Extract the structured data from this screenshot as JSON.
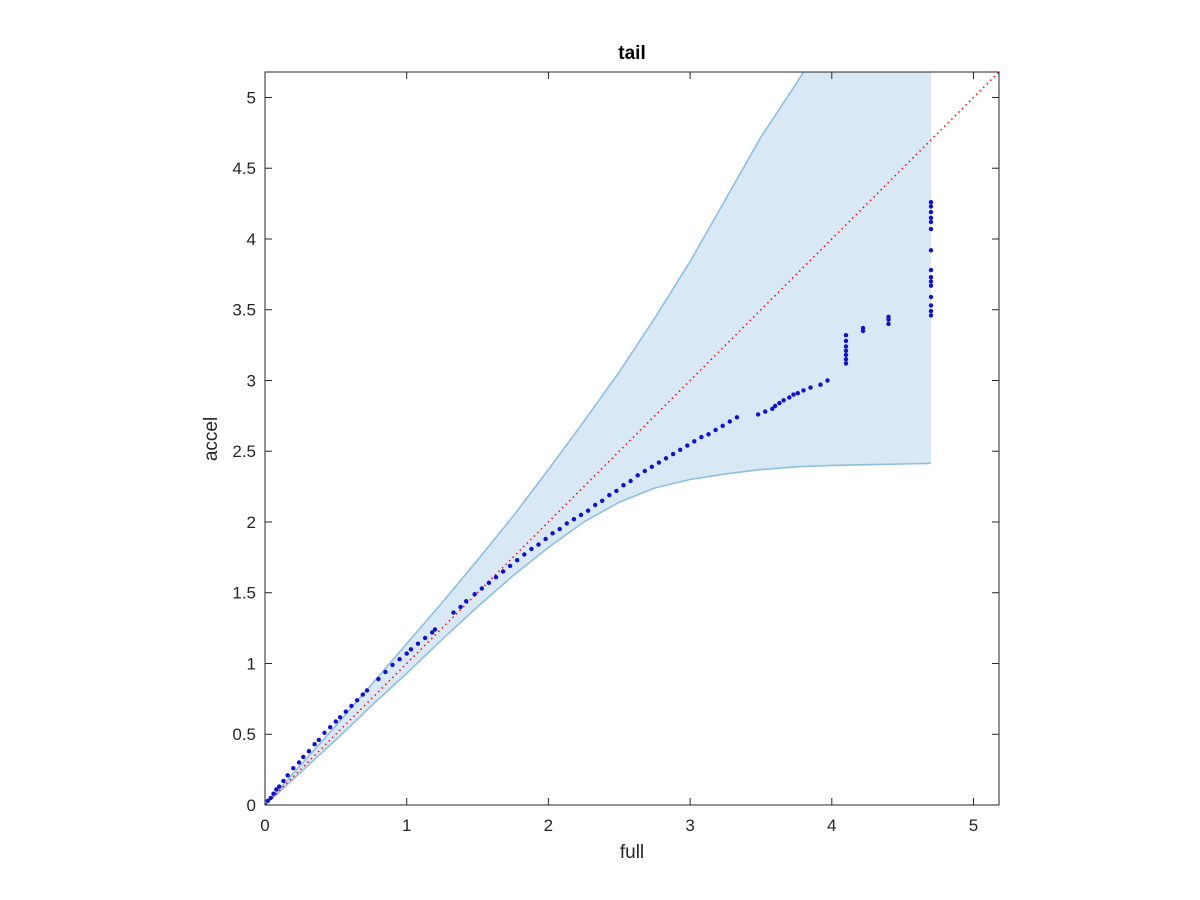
{
  "chart_data": {
    "type": "scatter",
    "title": "tail",
    "xlabel": "full",
    "ylabel": "accel",
    "xlim": [
      0,
      5.18
    ],
    "ylim": [
      0,
      5.18
    ],
    "xticks": [
      0,
      1,
      2,
      3,
      4,
      5
    ],
    "yticks": [
      0,
      0.5,
      1,
      1.5,
      2,
      2.5,
      3,
      3.5,
      4,
      4.5,
      5
    ],
    "xtick_labels": [
      "0",
      "1",
      "2",
      "3",
      "4",
      "5"
    ],
    "ytick_labels": [
      "0",
      "0.5",
      "1",
      "1.5",
      "2",
      "2.5",
      "3",
      "3.5",
      "4",
      "4.5",
      "5"
    ],
    "grid": false,
    "colors": {
      "band_fill": "#d8e8f4",
      "band_edge": "#8fbfe0",
      "points": "#1010d8",
      "reference": "#ff0000",
      "axes": "#262626"
    },
    "reference_line": {
      "x": [
        0,
        5.18
      ],
      "y": [
        0,
        5.18
      ],
      "style": "dotted"
    },
    "band_upper": {
      "x": [
        0,
        0.25,
        0.5,
        0.75,
        1.0,
        1.25,
        1.5,
        1.75,
        2.0,
        2.25,
        2.5,
        2.75,
        3.0,
        3.25,
        3.5,
        3.75,
        3.8
      ],
      "y": [
        0,
        0.28,
        0.56,
        0.85,
        1.14,
        1.43,
        1.73,
        2.04,
        2.37,
        2.71,
        3.06,
        3.44,
        3.84,
        4.28,
        4.72,
        5.1,
        5.18
      ]
    },
    "band_lower": {
      "x": [
        0,
        0.25,
        0.5,
        0.75,
        1.0,
        1.25,
        1.5,
        1.75,
        2.0,
        2.25,
        2.5,
        2.75,
        3.0,
        3.25,
        3.5,
        3.75,
        4.0,
        4.25,
        4.5,
        4.7
      ],
      "y": [
        0,
        0.23,
        0.46,
        0.7,
        0.93,
        1.17,
        1.4,
        1.62,
        1.82,
        2.0,
        2.14,
        2.24,
        2.3,
        2.34,
        2.37,
        2.39,
        2.4,
        2.405,
        2.41,
        2.415
      ]
    },
    "band_right_edge_x": 4.7,
    "series": [
      {
        "x": [
          0,
          0.02,
          0.04,
          0.06,
          0.08,
          0.1,
          0.13,
          0.16,
          0.2,
          0.24,
          0.27,
          0.31,
          0.35,
          0.38,
          0.42,
          0.46,
          0.5,
          0.53,
          0.57,
          0.61,
          0.65,
          0.69,
          0.72,
          0.8,
          0.85,
          0.9,
          0.95,
          1.0,
          1.03,
          1.08,
          1.13,
          1.18,
          1.2,
          1.33,
          1.38,
          1.42,
          1.48,
          1.53,
          1.58,
          1.63,
          1.68,
          1.73,
          1.78,
          1.83,
          1.88,
          1.93,
          1.98,
          2.03,
          2.08,
          2.13,
          2.18,
          2.23,
          2.28,
          2.33,
          2.38,
          2.43,
          2.48,
          2.53,
          2.58,
          2.63,
          2.68,
          2.73,
          2.78,
          2.83,
          2.88,
          2.93,
          2.98,
          3.03,
          3.08,
          3.13,
          3.18,
          3.23,
          3.28,
          3.33,
          3.48,
          3.53,
          3.58,
          3.6,
          3.63,
          3.66,
          3.7,
          3.73,
          3.76,
          3.8,
          3.85,
          3.92,
          3.97,
          4.1,
          4.1,
          4.1,
          4.1,
          4.1,
          4.1,
          4.1,
          4.22,
          4.22,
          4.4,
          4.4,
          4.4,
          4.7,
          4.7,
          4.7,
          4.7,
          4.7,
          4.7,
          4.7,
          4.7,
          4.7,
          4.7,
          4.7,
          4.7,
          4.7,
          4.7,
          4.7
        ],
        "y": [
          0,
          0.03,
          0.05,
          0.08,
          0.11,
          0.13,
          0.17,
          0.21,
          0.26,
          0.3,
          0.34,
          0.38,
          0.43,
          0.46,
          0.51,
          0.55,
          0.59,
          0.62,
          0.66,
          0.7,
          0.74,
          0.78,
          0.81,
          0.89,
          0.94,
          0.99,
          1.03,
          1.07,
          1.1,
          1.14,
          1.18,
          1.22,
          1.24,
          1.36,
          1.4,
          1.44,
          1.49,
          1.53,
          1.57,
          1.61,
          1.65,
          1.69,
          1.73,
          1.77,
          1.81,
          1.84,
          1.88,
          1.92,
          1.95,
          1.99,
          2.02,
          2.05,
          2.08,
          2.12,
          2.15,
          2.19,
          2.22,
          2.26,
          2.29,
          2.33,
          2.36,
          2.39,
          2.42,
          2.45,
          2.48,
          2.51,
          2.54,
          2.57,
          2.6,
          2.62,
          2.65,
          2.68,
          2.71,
          2.74,
          2.76,
          2.78,
          2.8,
          2.82,
          2.84,
          2.86,
          2.88,
          2.9,
          2.91,
          2.93,
          2.95,
          2.97,
          3.0,
          3.12,
          3.15,
          3.18,
          3.21,
          3.24,
          3.28,
          3.32,
          3.35,
          3.37,
          3.4,
          3.43,
          3.45,
          3.46,
          3.49,
          3.53,
          3.59,
          3.67,
          3.73,
          3.78,
          3.92,
          4.07,
          4.12,
          4.15,
          4.19,
          4.23,
          4.26,
          3.7
        ]
      }
    ]
  }
}
